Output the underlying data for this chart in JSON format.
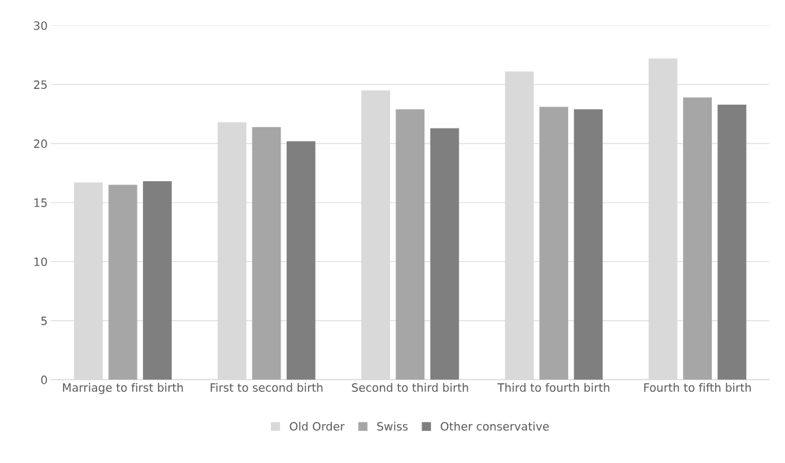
{
  "chart_data": {
    "type": "bar",
    "categories": [
      "Marriage to first birth",
      "First to second birth",
      "Second to third birth",
      "Third to fourth birth",
      "Fourth to fifth birth"
    ],
    "series": [
      {
        "name": "Old Order",
        "color": "#d9d9d9",
        "values": [
          16.7,
          21.8,
          24.5,
          26.1,
          27.2
        ]
      },
      {
        "name": "Swiss",
        "color": "#a6a6a6",
        "values": [
          16.5,
          21.4,
          22.9,
          23.1,
          23.9
        ]
      },
      {
        "name": "Other conservative",
        "color": "#7f7f7f",
        "values": [
          16.8,
          20.2,
          21.3,
          22.9,
          23.3
        ]
      }
    ],
    "ylim": [
      0,
      30
    ],
    "yticks": [
      0,
      5,
      10,
      15,
      20,
      25,
      30
    ],
    "grid": "y",
    "legend": "bottom"
  }
}
